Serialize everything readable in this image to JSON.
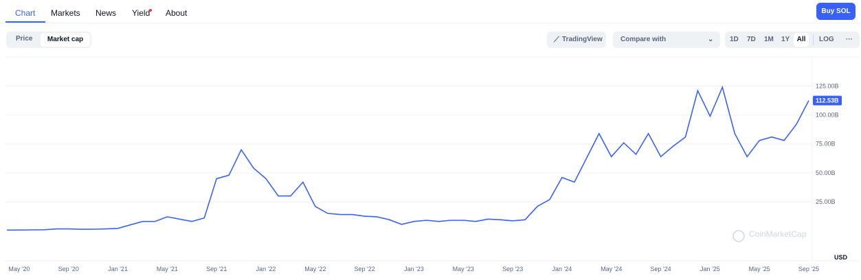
{
  "nav": {
    "tabs": [
      "Chart",
      "Markets",
      "News",
      "Yield",
      "About"
    ],
    "buy_button": "Buy SOL"
  },
  "toolbar": {
    "toggle": [
      "Price",
      "Market cap"
    ],
    "tradingview": "TradingView",
    "compare": "Compare with",
    "ranges": [
      "1D",
      "7D",
      "1M",
      "1Y",
      "All"
    ],
    "log": "LOG",
    "more": "···"
  },
  "chart_data": {
    "type": "line",
    "color": "#3861fb",
    "watermark": "CoinMarketCap",
    "currency": "USD",
    "x": [
      "2020-04",
      "2020-05",
      "2020-06",
      "2020-07",
      "2020-08",
      "2020-09",
      "2020-10",
      "2020-11",
      "2020-12",
      "2021-01",
      "2021-02",
      "2021-03",
      "2021-04",
      "2021-05",
      "2021-06",
      "2021-07",
      "2021-08",
      "2021-09",
      "2021-10",
      "2021-11",
      "2021-12",
      "2022-01",
      "2022-02",
      "2022-03",
      "2022-04",
      "2022-05",
      "2022-06",
      "2022-07",
      "2022-08",
      "2022-09",
      "2022-10",
      "2022-11",
      "2022-12",
      "2023-01",
      "2023-02",
      "2023-03",
      "2023-04",
      "2023-05",
      "2023-06",
      "2023-07",
      "2023-08",
      "2023-09",
      "2023-10",
      "2023-11",
      "2023-12",
      "2024-01",
      "2024-02",
      "2024-03",
      "2024-04",
      "2024-05",
      "2024-06",
      "2024-07",
      "2024-08",
      "2024-09",
      "2024-10",
      "2024-11",
      "2024-12",
      "2025-01",
      "2025-02",
      "2025-03",
      "2025-04",
      "2025-05",
      "2025-06",
      "2025-07",
      "2025-08",
      "2025-09"
    ],
    "values": [
      0.5,
      0.6,
      0.7,
      0.8,
      1.5,
      1.5,
      1.2,
      1.3,
      1.5,
      2,
      5,
      8,
      8,
      12,
      10,
      8,
      11,
      45,
      48,
      70,
      54,
      45,
      30,
      30,
      42,
      21,
      15,
      14,
      14,
      12.5,
      12,
      9.5,
      5.5,
      8,
      9,
      8,
      9,
      9,
      8,
      10,
      9.5,
      8.5,
      9.5,
      21,
      27,
      46,
      42,
      63,
      84,
      64,
      76,
      66,
      84,
      64,
      73,
      81,
      121,
      99,
      124,
      84,
      64,
      78,
      81,
      78,
      92,
      112.53
    ],
    "last_value": {
      "value": 112.53,
      "label": "112.53B"
    },
    "ylim": [
      -26,
      149
    ],
    "yticks": [
      {
        "value": 25,
        "label": "25.00B"
      },
      {
        "value": 50,
        "label": "50.00B"
      },
      {
        "value": 75,
        "label": "75.00B"
      },
      {
        "value": 100,
        "label": "100.00B"
      },
      {
        "value": 125,
        "label": "125.00B"
      }
    ],
    "xticks": [
      {
        "value": "2020-05",
        "label": "May '20"
      },
      {
        "value": "2020-09",
        "label": "Sep '20"
      },
      {
        "value": "2021-01",
        "label": "Jan '21"
      },
      {
        "value": "2021-05",
        "label": "May '21"
      },
      {
        "value": "2021-09",
        "label": "Sep '21"
      },
      {
        "value": "2022-01",
        "label": "Jan '22"
      },
      {
        "value": "2022-05",
        "label": "May '22"
      },
      {
        "value": "2022-09",
        "label": "Sep '22"
      },
      {
        "value": "2023-01",
        "label": "Jan '23"
      },
      {
        "value": "2023-05",
        "label": "May '23"
      },
      {
        "value": "2023-09",
        "label": "Sep '23"
      },
      {
        "value": "2024-01",
        "label": "Jan '24"
      },
      {
        "value": "2024-05",
        "label": "May '24"
      },
      {
        "value": "2024-09",
        "label": "Sep '24"
      },
      {
        "value": "2025-01",
        "label": "Jan '25"
      },
      {
        "value": "2025-05",
        "label": "May '25"
      },
      {
        "value": "2025-09",
        "label": "Sep '25"
      }
    ],
    "grid": true
  }
}
